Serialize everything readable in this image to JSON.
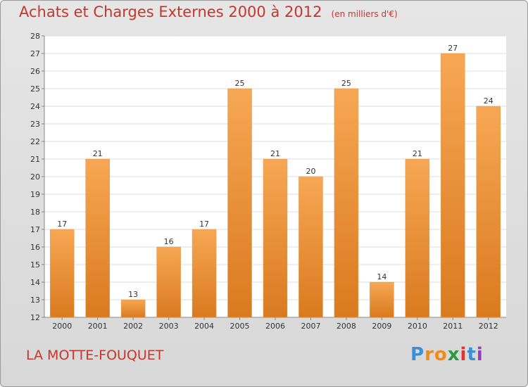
{
  "title": "Achats et Charges Externes 2000 à 2012",
  "subtitle": "(en milliers d'€)",
  "place": "LA MOTTE-FOUQUET",
  "logo": {
    "letters": [
      "P",
      "r",
      "o",
      "x",
      "i",
      "t",
      "i"
    ],
    "colors": [
      "#3b8fd6",
      "#f08a1c",
      "#f08a1c",
      "#2a9a3a",
      "#e5312c",
      "#3b8fd6",
      "#9a3bb8"
    ]
  },
  "colors": {
    "bar_top": "#f7a754",
    "bar_bottom": "#d97a1f",
    "title": "#c8352b"
  },
  "chart_data": {
    "type": "bar",
    "categories": [
      "2000",
      "2001",
      "2002",
      "2003",
      "2004",
      "2005",
      "2006",
      "2007",
      "2008",
      "2009",
      "2010",
      "2011",
      "2012"
    ],
    "values": [
      17,
      21,
      13,
      16,
      17,
      25,
      21,
      20,
      25,
      14,
      21,
      27,
      24
    ],
    "ylim": [
      12,
      28
    ],
    "yticks": [
      12,
      13,
      14,
      15,
      16,
      17,
      18,
      19,
      20,
      21,
      22,
      23,
      24,
      25,
      26,
      27,
      28
    ],
    "grid": true
  }
}
